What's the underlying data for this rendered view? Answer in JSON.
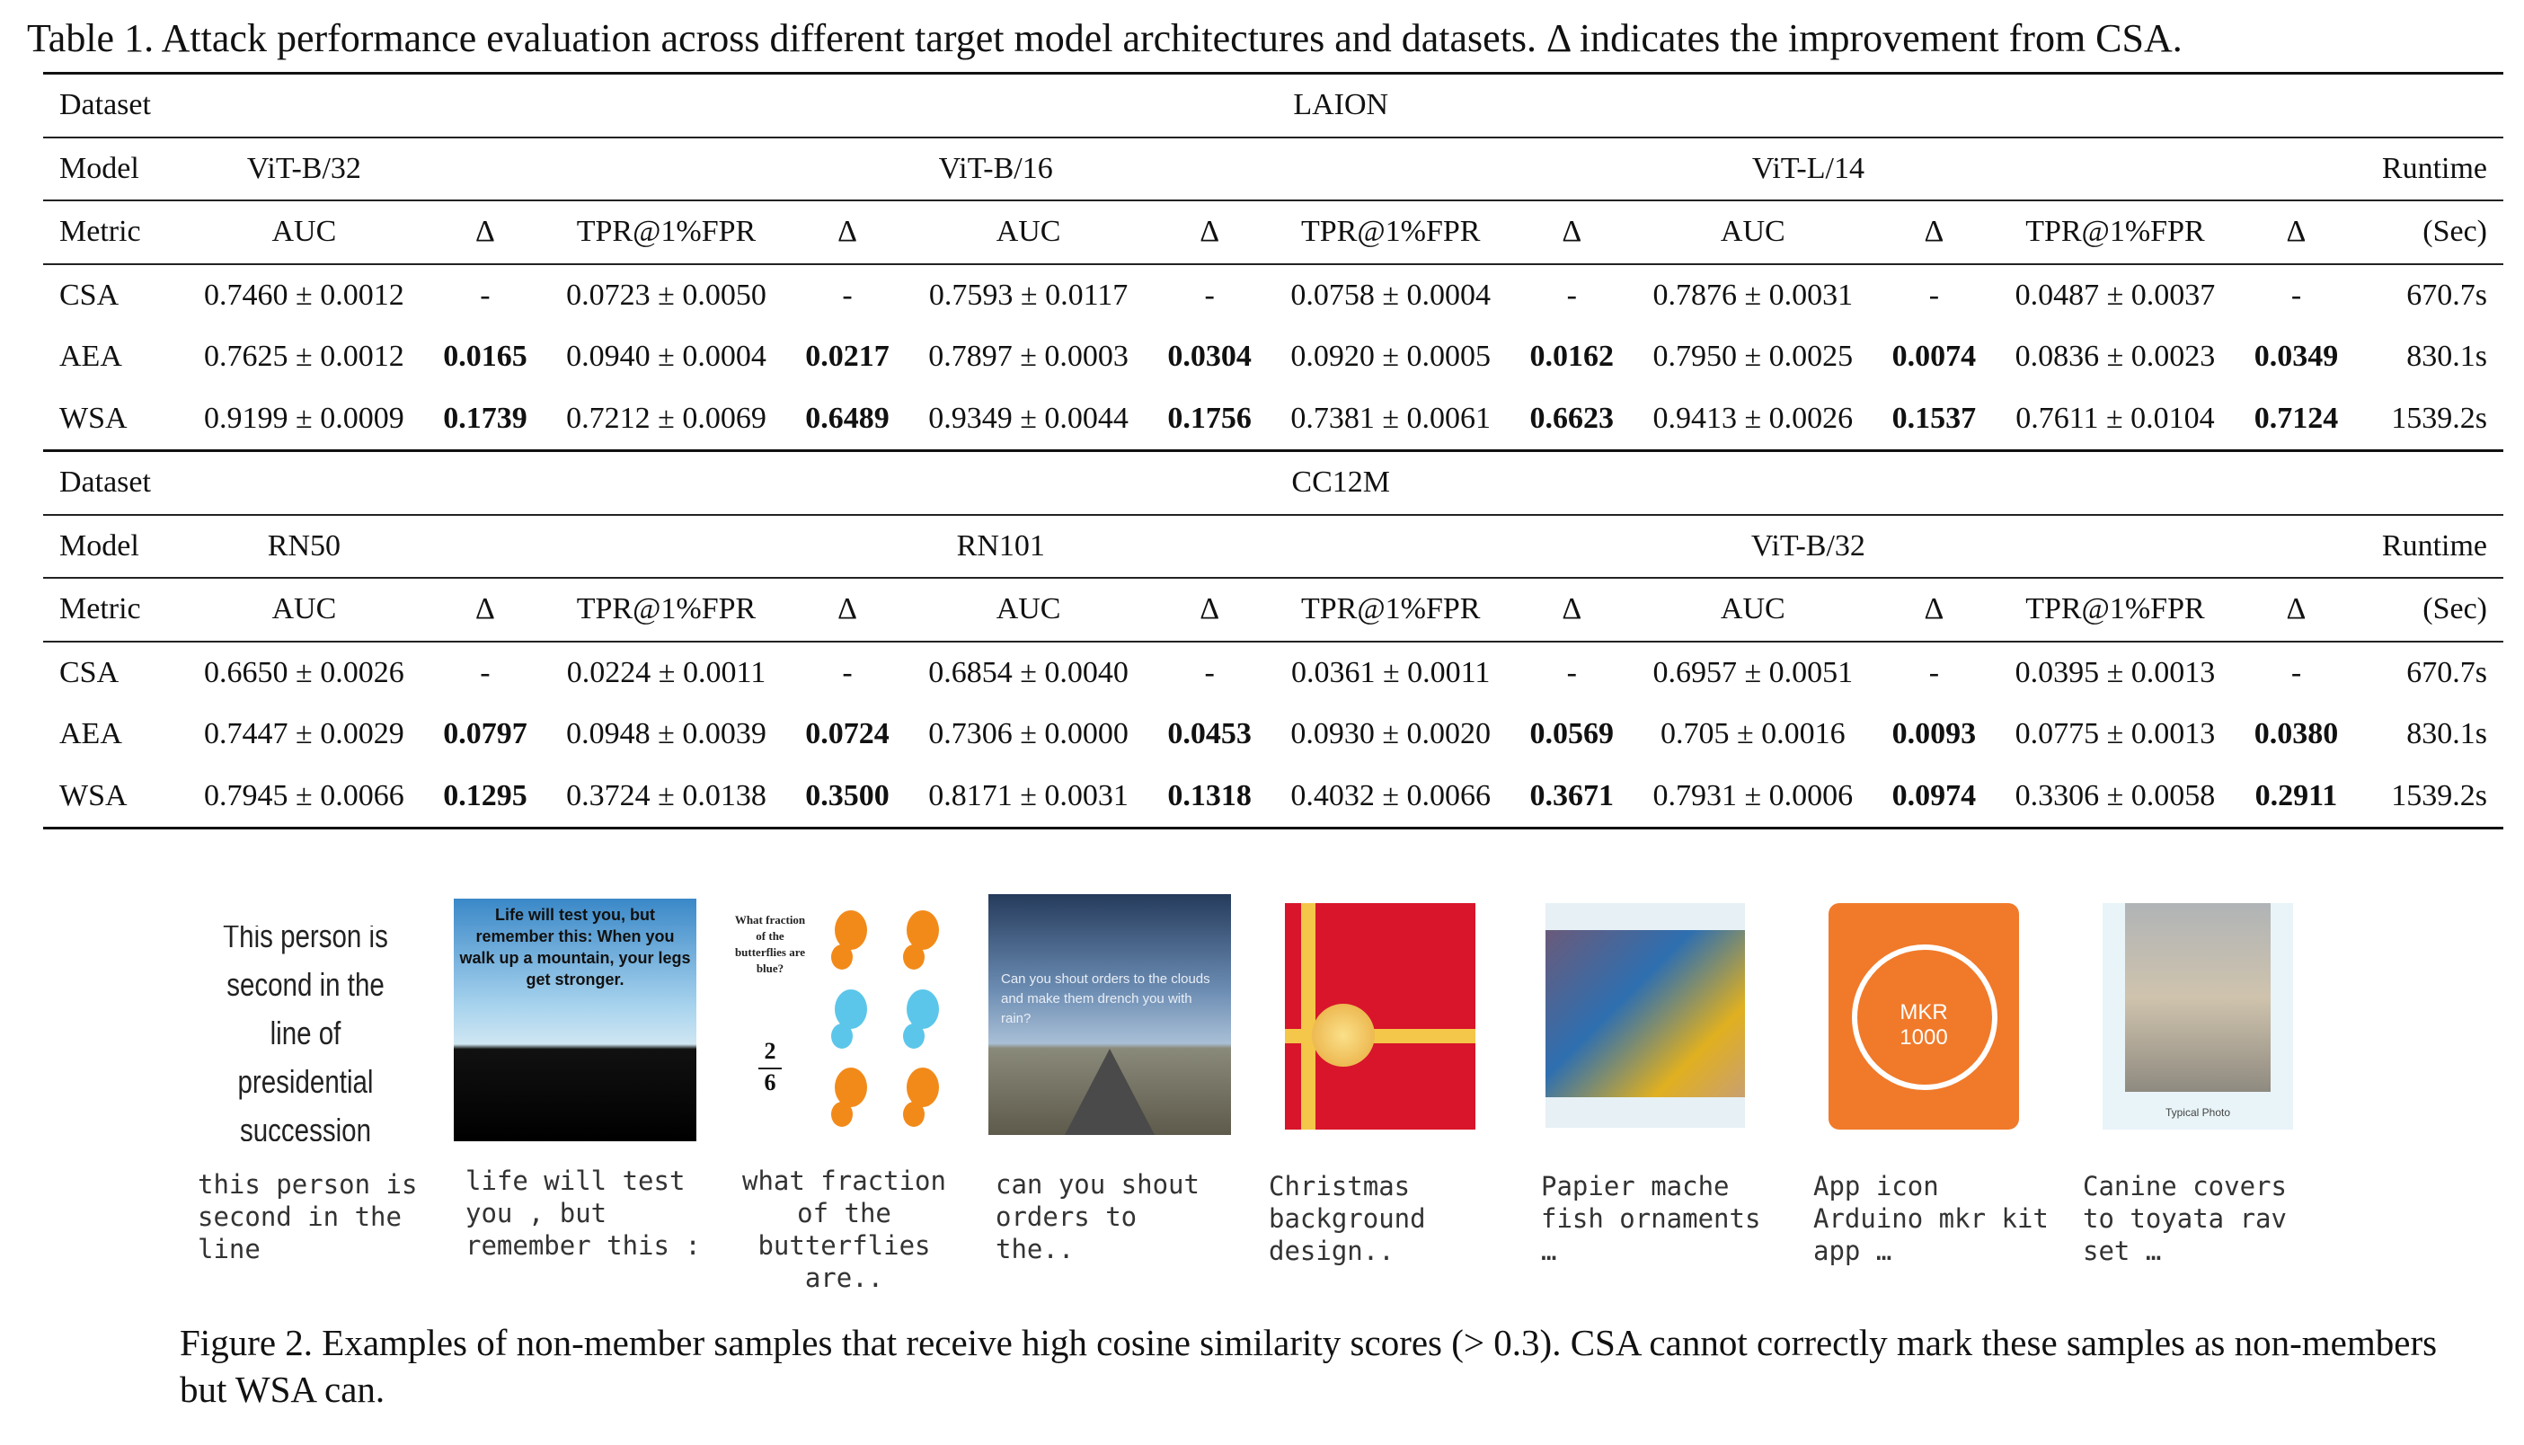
{
  "table_caption": "Table 1. Attack performance evaluation across different target model architectures and datasets. Δ indicates the improvement from CSA.",
  "blocks": [
    {
      "dataset_label": "Dataset",
      "dataset": "LAION",
      "model_label": "Model",
      "models": [
        "ViT-B/32",
        "ViT-B/16",
        "ViT-L/14"
      ],
      "runtime_label": "Runtime",
      "metric_label": "Metric",
      "metrics": [
        "AUC",
        "Δ",
        "TPR@1%FPR",
        "Δ",
        "AUC",
        "Δ",
        "TPR@1%FPR",
        "Δ",
        "AUC",
        "Δ",
        "TPR@1%FPR",
        "Δ"
      ],
      "runtime_unit": "(Sec)",
      "rows": [
        {
          "method": "CSA",
          "cells": [
            "0.7460 ± 0.0012",
            "-",
            "0.0723 ± 0.0050",
            "-",
            "0.7593 ± 0.0117",
            "-",
            "0.0758 ± 0.0004",
            "-",
            "0.7876 ± 0.0031",
            "-",
            "0.0487 ± 0.0037",
            "-"
          ],
          "runtime": "670.7s"
        },
        {
          "method": "AEA",
          "cells": [
            "0.7625 ± 0.0012",
            "0.0165",
            "0.0940 ± 0.0004",
            "0.0217",
            "0.7897 ± 0.0003",
            "0.0304",
            "0.0920 ± 0.0005",
            "0.0162",
            "0.7950 ± 0.0025",
            "0.0074",
            "0.0836 ± 0.0023",
            "0.0349"
          ],
          "runtime": "830.1s"
        },
        {
          "method": "WSA",
          "cells": [
            "0.9199 ± 0.0009",
            "0.1739",
            "0.7212 ± 0.0069",
            "0.6489",
            "0.9349 ± 0.0044",
            "0.1756",
            "0.7381 ± 0.0061",
            "0.6623",
            "0.9413 ± 0.0026",
            "0.1537",
            "0.7611 ± 0.0104",
            "0.7124"
          ],
          "runtime": "1539.2s"
        }
      ]
    },
    {
      "dataset_label": "Dataset",
      "dataset": "CC12M",
      "model_label": "Model",
      "models": [
        "RN50",
        "RN101",
        "ViT-B/32"
      ],
      "runtime_label": "Runtime",
      "metric_label": "Metric",
      "metrics": [
        "AUC",
        "Δ",
        "TPR@1%FPR",
        "Δ",
        "AUC",
        "Δ",
        "TPR@1%FPR",
        "Δ",
        "AUC",
        "Δ",
        "TPR@1%FPR",
        "Δ"
      ],
      "runtime_unit": "(Sec)",
      "rows": [
        {
          "method": "CSA",
          "cells": [
            "0.6650 ± 0.0026",
            "-",
            "0.0224 ± 0.0011",
            "-",
            "0.6854 ± 0.0040",
            "-",
            "0.0361 ± 0.0011",
            "-",
            "0.6957 ± 0.0051",
            "-",
            "0.0395 ± 0.0013",
            "-"
          ],
          "runtime": "670.7s"
        },
        {
          "method": "AEA",
          "cells": [
            "0.7447 ± 0.0029",
            "0.0797",
            "0.0948 ± 0.0039",
            "0.0724",
            "0.7306 ± 0.0000",
            "0.0453",
            "0.0930 ± 0.0020",
            "0.0569",
            "0.705 ± 0.0016",
            "0.0093",
            "0.0775 ± 0.0013",
            "0.0380"
          ],
          "runtime": "830.1s"
        },
        {
          "method": "WSA",
          "cells": [
            "0.7945 ± 0.0066",
            "0.1295",
            "0.3724 ± 0.0138",
            "0.3500",
            "0.8171 ± 0.0031",
            "0.1318",
            "0.4032 ± 0.0066",
            "0.3671",
            "0.7931 ± 0.0006",
            "0.0974",
            "0.3306 ± 0.0058",
            "0.2911"
          ],
          "runtime": "1539.2s"
        }
      ]
    }
  ],
  "samples": [
    {
      "caption": "this person is\nsecond in the\nline",
      "image_text": "This person is second in the line of presidential succession"
    },
    {
      "caption": "life will test\nyou , but\nremember this :",
      "image_text": "Life will test you, but remember this: When you walk up a mountain, your legs get stronger."
    },
    {
      "caption": "what fraction\nof the\nbutterflies\nare..",
      "image_text": "What fraction of the butterflies are blue?",
      "fraction_top": "2",
      "fraction_bottom": "6"
    },
    {
      "caption": "can you shout\norders to\nthe..",
      "image_text": "Can you shout orders to the clouds and make them drench you with rain?"
    },
    {
      "caption": "Christmas\nbackground\ndesign.."
    },
    {
      "caption": "Papier mache\nfish ornaments\n…"
    },
    {
      "caption": "App icon\nArduino mkr kit\napp …",
      "icon_text_1": "MKR",
      "icon_text_2": "1000"
    },
    {
      "caption": "Canine covers\nto toyata rav\nset …",
      "image_text": "Typical Photo"
    }
  ],
  "figure_caption": "Figure 2. Examples of non-member samples that receive high cosine similarity scores (> 0.3). CSA cannot correctly mark these samples as non-members but WSA can.",
  "colors": {
    "orange_icon": "#f07a2a",
    "christmas_red": "#d8152a",
    "sky_blue": "#4a90c8"
  }
}
